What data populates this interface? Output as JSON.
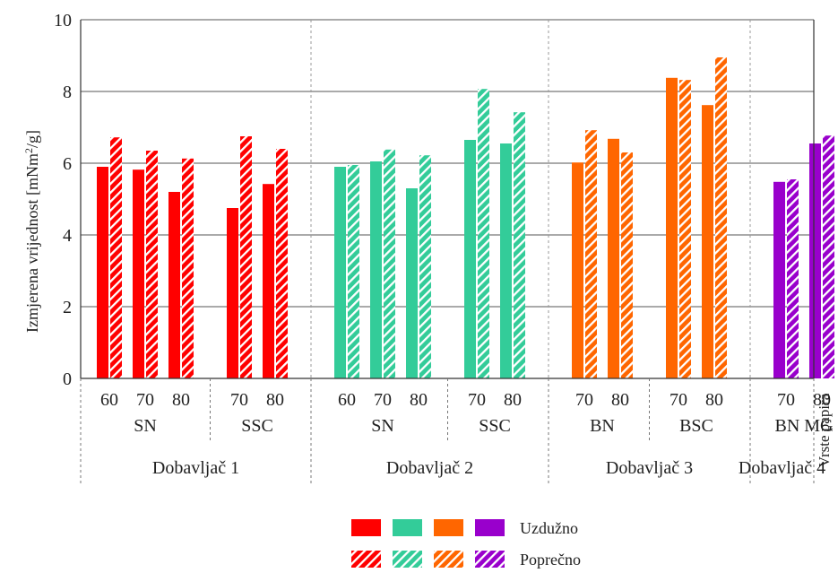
{
  "chart_data": {
    "type": "bar",
    "ylabel": "Izmjerena vrijednost  [mNm",
    "ylabel_sup": "2",
    "ylabel_tail": "/g]",
    "xlabel": "Vrste papira",
    "ylim": [
      0,
      10
    ],
    "yticks": [
      0,
      2,
      4,
      6,
      8,
      10
    ],
    "grid": true,
    "series_names": [
      "Uzdužno",
      "Poprečno"
    ],
    "supplier_colors": [
      "#ff0000",
      "#33cc99",
      "#ff6600",
      "#9900cc"
    ],
    "suppliers": [
      {
        "name": "Dobavljač 1",
        "groups": [
          {
            "name": "SN",
            "bars": [
              {
                "label": "60",
                "uzduzno": 5.9,
                "poprecno": 6.72
              },
              {
                "label": "70",
                "uzduzno": 5.82,
                "poprecno": 6.35
              },
              {
                "label": "80",
                "uzduzno": 5.2,
                "poprecno": 6.13
              }
            ]
          },
          {
            "name": "SSC",
            "bars": [
              {
                "label": "70",
                "uzduzno": 4.75,
                "poprecno": 6.75
              },
              {
                "label": "80",
                "uzduzno": 5.42,
                "poprecno": 6.4
              }
            ]
          }
        ]
      },
      {
        "name": "Dobavljač 2",
        "groups": [
          {
            "name": "SN",
            "bars": [
              {
                "label": "60",
                "uzduzno": 5.9,
                "poprecno": 5.95
              },
              {
                "label": "70",
                "uzduzno": 6.05,
                "poprecno": 6.38
              },
              {
                "label": "80",
                "uzduzno": 5.3,
                "poprecno": 6.22
              }
            ]
          },
          {
            "name": "SSC",
            "bars": [
              {
                "label": "70",
                "uzduzno": 6.65,
                "poprecno": 8.07
              },
              {
                "label": "80",
                "uzduzno": 6.55,
                "poprecno": 7.42
              }
            ]
          }
        ]
      },
      {
        "name": "Dobavljač 3",
        "groups": [
          {
            "name": "BN",
            "bars": [
              {
                "label": "70",
                "uzduzno": 6.02,
                "poprecno": 6.92
              },
              {
                "label": "80",
                "uzduzno": 6.68,
                "poprecno": 6.3
              }
            ]
          },
          {
            "name": "BSC",
            "bars": [
              {
                "label": "70",
                "uzduzno": 8.38,
                "poprecno": 8.32
              },
              {
                "label": "80",
                "uzduzno": 7.62,
                "poprecno": 8.95
              }
            ]
          }
        ]
      },
      {
        "name": "Dobavljač 4",
        "groups": [
          {
            "name": "BN MG",
            "bars": [
              {
                "label": "70",
                "uzduzno": 5.48,
                "poprecno": 5.55
              },
              {
                "label": "80",
                "uzduzno": 6.55,
                "poprecno": 6.77
              }
            ]
          }
        ]
      }
    ]
  }
}
